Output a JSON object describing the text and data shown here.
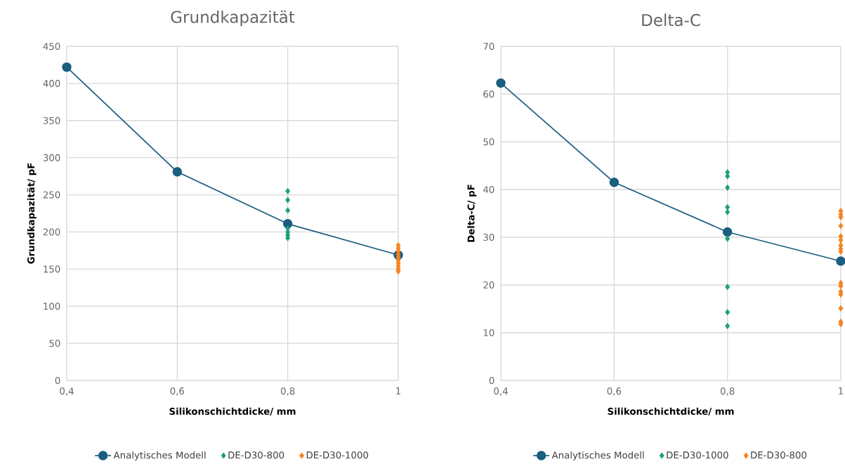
{
  "chart_data": [
    {
      "type": "line",
      "title": "Grundkapazität",
      "xlabel": "Silikonschichtdicke/  mm",
      "ylabel": "Grundkapazität/ pF",
      "xlim": [
        0.4,
        1
      ],
      "ylim": [
        0,
        450
      ],
      "xticks": [
        {
          "value": 0.4,
          "label": "0,4"
        },
        {
          "value": 0.6,
          "label": "0,6"
        },
        {
          "value": 0.8,
          "label": "0,8"
        },
        1
      ],
      "yticks": [
        0,
        50,
        100,
        150,
        200,
        250,
        300,
        350,
        400,
        450
      ],
      "grid": true,
      "legend": "bottom",
      "series": [
        {
          "name": "Analytisches Modell",
          "color": "#1b5e80",
          "marker": "circle",
          "x": [
            0.4,
            0.6,
            0.8,
            1
          ],
          "values": [
            422,
            281,
            211,
            169
          ]
        },
        {
          "name": "DE-D30-800",
          "type": "scatter",
          "color": "#1aa07a",
          "marker": "diamond",
          "x": [
            0.8,
            0.8,
            0.8,
            0.8,
            0.8,
            0.8,
            0.8
          ],
          "values": [
            255,
            243,
            229,
            205,
            200,
            196,
            192
          ]
        },
        {
          "name": "DE-D30-1000",
          "type": "scatter",
          "color": "#f5821f",
          "marker": "diamond",
          "x": [
            1,
            1,
            1,
            1,
            1,
            1,
            1,
            1,
            1,
            1
          ],
          "values": [
            182,
            178,
            174,
            170,
            166,
            162,
            158,
            154,
            150,
            147
          ]
        }
      ]
    },
    {
      "type": "line",
      "title": "Delta-C",
      "xlabel": "Silikonschichtdicke/  mm",
      "ylabel": "Delta-C/ pF",
      "xlim": [
        0.4,
        1
      ],
      "ylim": [
        0,
        70
      ],
      "xticks": [
        {
          "value": 0.4,
          "label": "0,4"
        },
        {
          "value": 0.6,
          "label": "0,6"
        },
        {
          "value": 0.8,
          "label": "0,8"
        },
        1
      ],
      "yticks": [
        0,
        10,
        20,
        30,
        40,
        50,
        60,
        70
      ],
      "grid": true,
      "legend": "bottom",
      "series": [
        {
          "name": "Analytisches Modell",
          "color": "#1b5e80",
          "marker": "circle",
          "x": [
            0.4,
            0.6,
            0.8,
            1
          ],
          "values": [
            62.3,
            41.5,
            31.1,
            25.0
          ]
        },
        {
          "name": "DE-D30-1000",
          "type": "scatter",
          "color": "#1aa07a",
          "marker": "diamond",
          "x": [
            0.8,
            0.8,
            0.8,
            0.8,
            0.8,
            0.8,
            0.8,
            0.8,
            0.8
          ],
          "values": [
            43.6,
            42.8,
            40.4,
            36.3,
            35.3,
            29.7,
            19.6,
            14.3,
            11.4
          ]
        },
        {
          "name": "DE-D30-800",
          "type": "scatter",
          "color": "#f5821f",
          "marker": "diamond",
          "x": [
            1,
            1,
            1,
            1,
            1,
            1,
            1,
            1,
            1,
            1,
            1,
            1,
            1,
            1,
            1,
            1
          ],
          "values": [
            35.5,
            34.8,
            34.2,
            32.4,
            30.2,
            29.4,
            28.3,
            27.6,
            27.0,
            20.4,
            19.8,
            18.6,
            18.0,
            15.1,
            12.3,
            11.8
          ]
        }
      ]
    }
  ]
}
